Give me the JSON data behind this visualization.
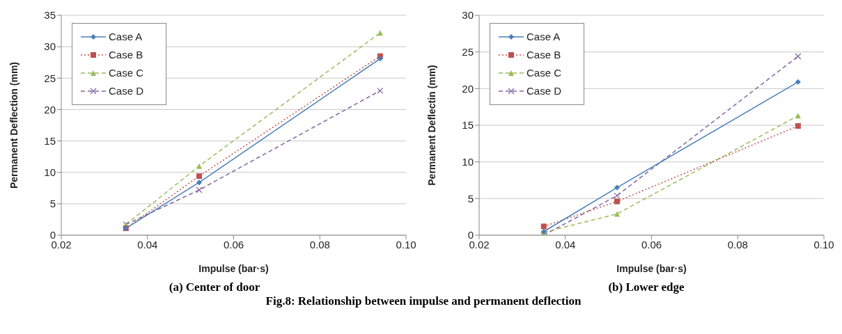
{
  "chart_data": [
    {
      "type": "line",
      "title": "(a) Center of door",
      "xlabel": "Impulse (bar·s)",
      "ylabel": "Permanent Deflection (mm)",
      "x": [
        0.035,
        0.052,
        0.094
      ],
      "xlim": [
        0.02,
        0.1
      ],
      "xticks": [
        {
          "value": 0.02,
          "label": "0.02"
        },
        {
          "value": 0.04,
          "label": "0.04"
        },
        {
          "value": 0.06,
          "label": "0.06"
        },
        {
          "value": 0.08,
          "label": "0.08"
        },
        {
          "value": 0.1,
          "label": "0.10"
        }
      ],
      "ylim": [
        0,
        35
      ],
      "yticks": [
        0,
        5,
        10,
        15,
        20,
        25,
        30,
        35
      ],
      "grid": "y",
      "legend": "top left",
      "annotations": [
        "Fig.8: Relationship between impulse and permanent deflection"
      ],
      "series": [
        {
          "name": "Case A",
          "color": "#4a7ebb",
          "marker": "diamond",
          "line_style": "solid",
          "values": [
            1.1,
            8.4,
            28.1
          ]
        },
        {
          "name": "Case B",
          "color": "#c0504d",
          "marker": "square",
          "line_style": "dotted",
          "values": [
            1.1,
            9.4,
            28.5
          ]
        },
        {
          "name": "Case C",
          "color": "#9bbb59",
          "marker": "triangle",
          "line_style": "dashed",
          "values": [
            1.7,
            11.0,
            32.2
          ]
        },
        {
          "name": "Case D",
          "color": "#8064a2",
          "marker": "cross",
          "line_style": "dashed",
          "values": [
            1.7,
            7.2,
            23.0
          ]
        }
      ]
    },
    {
      "type": "line",
      "title": "(b) Lower edge",
      "xlabel": "Impulse (bar·s)",
      "ylabel": "Permanent Deflectin (mm)",
      "x": [
        0.035,
        0.052,
        0.094
      ],
      "xlim": [
        0.02,
        0.1
      ],
      "xticks": [
        {
          "value": 0.02,
          "label": "0.02"
        },
        {
          "value": 0.04,
          "label": "0.04"
        },
        {
          "value": 0.06,
          "label": "0.06"
        },
        {
          "value": 0.08,
          "label": "0.08"
        },
        {
          "value": 0.1,
          "label": "0.10"
        }
      ],
      "ylim": [
        0,
        30
      ],
      "yticks": [
        0,
        5,
        10,
        15,
        20,
        25,
        30
      ],
      "grid": "y",
      "legend": "top left",
      "series": [
        {
          "name": "Case A",
          "color": "#4a7ebb",
          "marker": "diamond",
          "line_style": "solid",
          "values": [
            0.5,
            6.5,
            20.9
          ]
        },
        {
          "name": "Case B",
          "color": "#c0504d",
          "marker": "square",
          "line_style": "dotted",
          "values": [
            1.2,
            4.6,
            14.9
          ]
        },
        {
          "name": "Case C",
          "color": "#9bbb59",
          "marker": "triangle",
          "line_style": "dashed",
          "values": [
            0.4,
            2.9,
            16.3
          ]
        },
        {
          "name": "Case D",
          "color": "#8064a2",
          "marker": "cross",
          "line_style": "dashed",
          "values": [
            0.0,
            5.4,
            24.4
          ]
        }
      ]
    }
  ]
}
